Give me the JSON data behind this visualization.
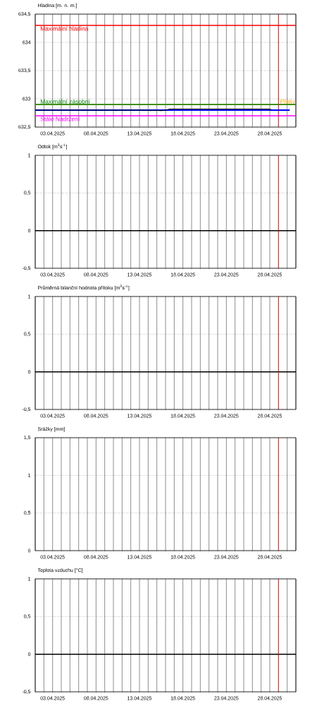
{
  "chart_data": [
    {
      "type": "line",
      "title": "Hladina [m. n. m.]",
      "xlim": [
        "2025-04-01",
        "2025-05-01"
      ],
      "ylim": [
        632.5,
        634.5
      ],
      "grid": true,
      "xticks": [
        {
          "value": "2025-04-01",
          "label": null
        },
        {
          "value": "2025-04-02",
          "label": null
        },
        {
          "value": "2025-04-03",
          "label": "03.04.2025"
        },
        {
          "value": "2025-04-04",
          "label": null
        },
        {
          "value": "2025-04-05",
          "label": null
        },
        {
          "value": "2025-04-06",
          "label": null
        },
        {
          "value": "2025-04-07",
          "label": null
        },
        {
          "value": "2025-04-08",
          "label": "08.04.2025"
        },
        {
          "value": "2025-04-09",
          "label": null
        },
        {
          "value": "2025-04-10",
          "label": null
        },
        {
          "value": "2025-04-11",
          "label": null
        },
        {
          "value": "2025-04-12",
          "label": null
        },
        {
          "value": "2025-04-13",
          "label": "13.04.2025"
        },
        {
          "value": "2025-04-14",
          "label": null
        },
        {
          "value": "2025-04-15",
          "label": null
        },
        {
          "value": "2025-04-16",
          "label": null
        },
        {
          "value": "2025-04-17",
          "label": null
        },
        {
          "value": "2025-04-18",
          "label": "18.04.2025"
        },
        {
          "value": "2025-04-19",
          "label": null
        },
        {
          "value": "2025-04-20",
          "label": null
        },
        {
          "value": "2025-04-21",
          "label": null
        },
        {
          "value": "2025-04-22",
          "label": null
        },
        {
          "value": "2025-04-23",
          "label": "23.04.2025"
        },
        {
          "value": "2025-04-24",
          "label": null
        },
        {
          "value": "2025-04-25",
          "label": null
        },
        {
          "value": "2025-04-26",
          "label": null
        },
        {
          "value": "2025-04-27",
          "label": null
        },
        {
          "value": "2025-04-28",
          "label": "28.04.2025"
        },
        {
          "value": "2025-04-29",
          "label": null
        },
        {
          "value": "2025-04-30",
          "label": null
        },
        {
          "value": "2025-05-01",
          "label": null
        }
      ],
      "yticks": [
        {
          "value": 632.5,
          "label": "632,5"
        },
        633,
        {
          "value": 633.5,
          "label": "633,5"
        },
        634,
        {
          "value": 634.5,
          "label": "634,5"
        }
      ],
      "series": [
        {
          "color": "#0000ff",
          "x": [
            "2025-04-01",
            "2025-04-30T07:00"
          ],
          "values": [
            632.8,
            632.8
          ]
        },
        {
          "color": "#000000",
          "x": [
            "2025-04-01",
            "2025-04-10",
            "2025-04-10T06:00",
            "2025-04-10T12:00",
            "2025-04-14",
            "2025-04-14T06:00",
            "2025-04-14T12:00",
            "2025-04-15T12:00",
            "2025-04-16",
            "2025-04-16T12:00",
            "2025-04-24",
            "2025-04-24T06:00",
            "2025-04-24T12:00",
            "2025-04-28",
            "2025-04-28T06:00"
          ],
          "values": [
            632.8,
            632.8,
            632.79,
            632.8,
            632.8,
            632.79,
            632.8,
            632.79,
            632.8,
            632.82,
            632.82,
            632.82,
            632.82,
            632.82,
            632.8
          ]
        }
      ],
      "ref_lines": [
        {
          "axis": "y",
          "value": 634.3,
          "label": "Maximální hladina",
          "color": "#ff0000"
        },
        {
          "axis": "y",
          "value": 632.9,
          "label": "Přeliv",
          "color": "#ffa500"
        },
        {
          "axis": "y",
          "value": 632.9,
          "label": "Maximální zásobní",
          "color": "#008000"
        },
        {
          "axis": "y",
          "value": 632.7,
          "label": "Stálé Nadržení",
          "color": "#ff00ff"
        },
        {
          "axis": "x",
          "value": "2025-04-29",
          "color": "#ff0000"
        }
      ]
    },
    {
      "type": "line",
      "title": "Odtok [m$^{3}$s$^{-1}$]",
      "xlim": [
        "2025-04-01",
        "2025-05-01"
      ],
      "ylim": [
        -0.5,
        1
      ],
      "grid": true,
      "xticks": [
        {
          "value": "2025-04-01",
          "label": null
        },
        {
          "value": "2025-04-02",
          "label": null
        },
        {
          "value": "2025-04-03",
          "label": "03.04.2025"
        },
        {
          "value": "2025-04-04",
          "label": null
        },
        {
          "value": "2025-04-05",
          "label": null
        },
        {
          "value": "2025-04-06",
          "label": null
        },
        {
          "value": "2025-04-07",
          "label": null
        },
        {
          "value": "2025-04-08",
          "label": "08.04.2025"
        },
        {
          "value": "2025-04-09",
          "label": null
        },
        {
          "value": "2025-04-10",
          "label": null
        },
        {
          "value": "2025-04-11",
          "label": null
        },
        {
          "value": "2025-04-12",
          "label": null
        },
        {
          "value": "2025-04-13",
          "label": "13.04.2025"
        },
        {
          "value": "2025-04-14",
          "label": null
        },
        {
          "value": "2025-04-15",
          "label": null
        },
        {
          "value": "2025-04-16",
          "label": null
        },
        {
          "value": "2025-04-17",
          "label": null
        },
        {
          "value": "2025-04-18",
          "label": "18.04.2025"
        },
        {
          "value": "2025-04-19",
          "label": null
        },
        {
          "value": "2025-04-20",
          "label": null
        },
        {
          "value": "2025-04-21",
          "label": null
        },
        {
          "value": "2025-04-22",
          "label": null
        },
        {
          "value": "2025-04-23",
          "label": "23.04.2025"
        },
        {
          "value": "2025-04-24",
          "label": null
        },
        {
          "value": "2025-04-25",
          "label": null
        },
        {
          "value": "2025-04-26",
          "label": null
        },
        {
          "value": "2025-04-27",
          "label": null
        },
        {
          "value": "2025-04-28",
          "label": "28.04.2025"
        },
        {
          "value": "2025-04-29",
          "label": null
        },
        {
          "value": "2025-04-30",
          "label": null
        },
        {
          "value": "2025-05-01",
          "label": null
        }
      ],
      "yticks": [
        {
          "value": -0.5,
          "label": "-0,5"
        },
        0,
        {
          "value": 0.5,
          "label": "0,5"
        },
        1
      ],
      "ref_lines": [
        {
          "axis": "y",
          "value": 0,
          "color": "#000000"
        },
        {
          "axis": "x",
          "value": "2025-04-29",
          "color": "#ff0000"
        }
      ]
    },
    {
      "type": "line",
      "title": "Průměrná bilanční hodnota přítoku   [m$^{3}$s$^{-1}$]",
      "xlim": [
        "2025-04-01",
        "2025-05-01"
      ],
      "ylim": [
        -0.5,
        1
      ],
      "grid": true,
      "xticks": [
        {
          "value": "2025-04-01",
          "label": null
        },
        {
          "value": "2025-04-02",
          "label": null
        },
        {
          "value": "2025-04-03",
          "label": "03.04.2025"
        },
        {
          "value": "2025-04-04",
          "label": null
        },
        {
          "value": "2025-04-05",
          "label": null
        },
        {
          "value": "2025-04-06",
          "label": null
        },
        {
          "value": "2025-04-07",
          "label": null
        },
        {
          "value": "2025-04-08",
          "label": "08.04.2025"
        },
        {
          "value": "2025-04-09",
          "label": null
        },
        {
          "value": "2025-04-10",
          "label": null
        },
        {
          "value": "2025-04-11",
          "label": null
        },
        {
          "value": "2025-04-12",
          "label": null
        },
        {
          "value": "2025-04-13",
          "label": "13.04.2025"
        },
        {
          "value": "2025-04-14",
          "label": null
        },
        {
          "value": "2025-04-15",
          "label": null
        },
        {
          "value": "2025-04-16",
          "label": null
        },
        {
          "value": "2025-04-17",
          "label": null
        },
        {
          "value": "2025-04-18",
          "label": "18.04.2025"
        },
        {
          "value": "2025-04-19",
          "label": null
        },
        {
          "value": "2025-04-20",
          "label": null
        },
        {
          "value": "2025-04-21",
          "label": null
        },
        {
          "value": "2025-04-22",
          "label": null
        },
        {
          "value": "2025-04-23",
          "label": "23.04.2025"
        },
        {
          "value": "2025-04-24",
          "label": null
        },
        {
          "value": "2025-04-25",
          "label": null
        },
        {
          "value": "2025-04-26",
          "label": null
        },
        {
          "value": "2025-04-27",
          "label": null
        },
        {
          "value": "2025-04-28",
          "label": "28.04.2025"
        },
        {
          "value": "2025-04-29",
          "label": null
        },
        {
          "value": "2025-04-30",
          "label": null
        },
        {
          "value": "2025-05-01",
          "label": null
        }
      ],
      "yticks": [
        {
          "value": -0.5,
          "label": "-0,5"
        },
        0,
        {
          "value": 0.5,
          "label": "0,5"
        },
        1
      ],
      "ref_lines": [
        {
          "axis": "y",
          "value": 0,
          "color": "#000000"
        },
        {
          "axis": "x",
          "value": "2025-04-29",
          "color": "#ff0000"
        }
      ]
    },
    {
      "type": "bar",
      "title": "Srážky [mm]",
      "xlim": [
        "2025-04-01",
        "2025-05-01"
      ],
      "ylim": [
        0,
        1.5
      ],
      "grid": true,
      "xticks": [
        {
          "value": "2025-04-01",
          "label": null
        },
        {
          "value": "2025-04-02",
          "label": null
        },
        {
          "value": "2025-04-03",
          "label": "03.04.2025"
        },
        {
          "value": "2025-04-04",
          "label": null
        },
        {
          "value": "2025-04-05",
          "label": null
        },
        {
          "value": "2025-04-06",
          "label": null
        },
        {
          "value": "2025-04-07",
          "label": null
        },
        {
          "value": "2025-04-08",
          "label": "08.04.2025"
        },
        {
          "value": "2025-04-09",
          "label": null
        },
        {
          "value": "2025-04-10",
          "label": null
        },
        {
          "value": "2025-04-11",
          "label": null
        },
        {
          "value": "2025-04-12",
          "label": null
        },
        {
          "value": "2025-04-13",
          "label": "13.04.2025"
        },
        {
          "value": "2025-04-14",
          "label": null
        },
        {
          "value": "2025-04-15",
          "label": null
        },
        {
          "value": "2025-04-16",
          "label": null
        },
        {
          "value": "2025-04-17",
          "label": null
        },
        {
          "value": "2025-04-18",
          "label": "18.04.2025"
        },
        {
          "value": "2025-04-19",
          "label": null
        },
        {
          "value": "2025-04-20",
          "label": null
        },
        {
          "value": "2025-04-21",
          "label": null
        },
        {
          "value": "2025-04-22",
          "label": null
        },
        {
          "value": "2025-04-23",
          "label": "23.04.2025"
        },
        {
          "value": "2025-04-24",
          "label": null
        },
        {
          "value": "2025-04-25",
          "label": null
        },
        {
          "value": "2025-04-26",
          "label": null
        },
        {
          "value": "2025-04-27",
          "label": null
        },
        {
          "value": "2025-04-28",
          "label": "28.04.2025"
        },
        {
          "value": "2025-04-29",
          "label": null
        },
        {
          "value": "2025-04-30",
          "label": null
        },
        {
          "value": "2025-05-01",
          "label": null
        }
      ],
      "yticks": [
        0,
        {
          "value": 0.5,
          "label": "0,5"
        },
        1,
        {
          "value": 1.5,
          "label": "1,5"
        }
      ],
      "ref_lines": [
        {
          "axis": "x",
          "value": "2025-04-29",
          "color": "#ff0000"
        }
      ]
    },
    {
      "type": "line",
      "title": "Teplota vzduchu [°C]",
      "xlim": [
        "2025-04-01",
        "2025-05-01"
      ],
      "ylim": [
        -0.5,
        1
      ],
      "grid": true,
      "xticks": [
        {
          "value": "2025-04-01",
          "label": null
        },
        {
          "value": "2025-04-02",
          "label": null
        },
        {
          "value": "2025-04-03",
          "label": "03.04.2025"
        },
        {
          "value": "2025-04-04",
          "label": null
        },
        {
          "value": "2025-04-05",
          "label": null
        },
        {
          "value": "2025-04-06",
          "label": null
        },
        {
          "value": "2025-04-07",
          "label": null
        },
        {
          "value": "2025-04-08",
          "label": "08.04.2025"
        },
        {
          "value": "2025-04-09",
          "label": null
        },
        {
          "value": "2025-04-10",
          "label": null
        },
        {
          "value": "2025-04-11",
          "label": null
        },
        {
          "value": "2025-04-12",
          "label": null
        },
        {
          "value": "2025-04-13",
          "label": "13.04.2025"
        },
        {
          "value": "2025-04-14",
          "label": null
        },
        {
          "value": "2025-04-15",
          "label": null
        },
        {
          "value": "2025-04-16",
          "label": null
        },
        {
          "value": "2025-04-17",
          "label": null
        },
        {
          "value": "2025-04-18",
          "label": "18.04.2025"
        },
        {
          "value": "2025-04-19",
          "label": null
        },
        {
          "value": "2025-04-20",
          "label": null
        },
        {
          "value": "2025-04-21",
          "label": null
        },
        {
          "value": "2025-04-22",
          "label": null
        },
        {
          "value": "2025-04-23",
          "label": "23.04.2025"
        },
        {
          "value": "2025-04-24",
          "label": null
        },
        {
          "value": "2025-04-25",
          "label": null
        },
        {
          "value": "2025-04-26",
          "label": null
        },
        {
          "value": "2025-04-27",
          "label": null
        },
        {
          "value": "2025-04-28",
          "label": "28.04.2025"
        },
        {
          "value": "2025-04-29",
          "label": null
        },
        {
          "value": "2025-04-30",
          "label": null
        },
        {
          "value": "2025-05-01",
          "label": null
        }
      ],
      "yticks": [
        {
          "value": -0.5,
          "label": "-0,5"
        },
        0,
        {
          "value": 0.5,
          "label": "0,5"
        },
        1
      ],
      "ref_lines": [
        {
          "axis": "y",
          "value": 0,
          "color": "#000000"
        },
        {
          "axis": "x",
          "value": "2025-04-29",
          "color": "#ff0000"
        }
      ]
    }
  ]
}
